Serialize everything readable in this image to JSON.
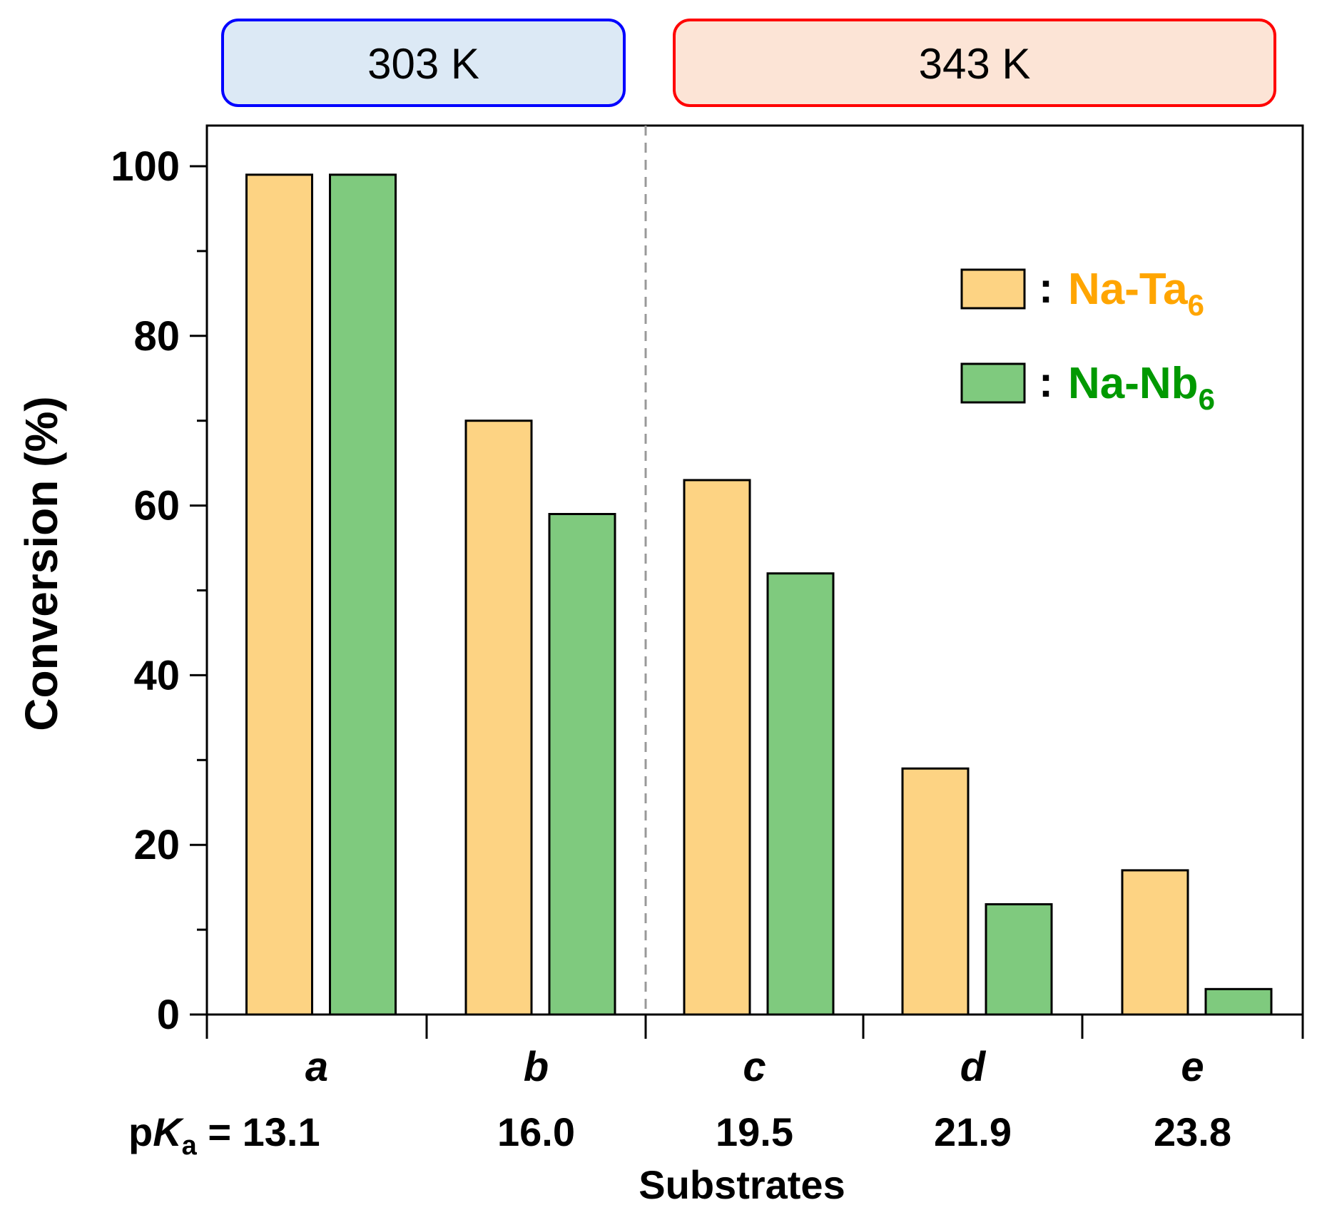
{
  "chart_data": {
    "type": "bar",
    "ylabel": "Conversion (%)",
    "xlabel": "Substrates",
    "ylim": [
      0,
      100
    ],
    "yticks": [
      0,
      20,
      40,
      60,
      80,
      100
    ],
    "yticks_minor": [
      10,
      30,
      50,
      70,
      90
    ],
    "categories": [
      "a",
      "b",
      "c",
      "d",
      "e"
    ],
    "pka_prefix": "p",
    "pka_K": "K",
    "pka_sub": "a",
    "pka_eq": " = ",
    "pka_values": [
      "13.1",
      "16.0",
      "19.5",
      "21.9",
      "23.8"
    ],
    "series": [
      {
        "name": "Na-Ta",
        "name_sub": "6",
        "color": "#FDD383",
        "label_color": "#FFA500",
        "values": [
          99,
          70,
          63,
          29,
          17
        ]
      },
      {
        "name": "Na-Nb",
        "name_sub": "6",
        "color": "#7FCA7E",
        "label_color": "#009900",
        "values": [
          99,
          59,
          52,
          13,
          3
        ]
      }
    ],
    "legend_sep": ":",
    "temperature_groups": [
      {
        "label": "303 K",
        "fill": "#DCE9F5",
        "border": "#0000FF",
        "categories": [
          "a",
          "b"
        ]
      },
      {
        "label": "343 K",
        "fill": "#FCE4D6",
        "border": "#FF0000",
        "categories": [
          "c",
          "d",
          "e"
        ]
      }
    ],
    "divider_after_category": "b",
    "grid": false,
    "legend_position": "top-right"
  }
}
